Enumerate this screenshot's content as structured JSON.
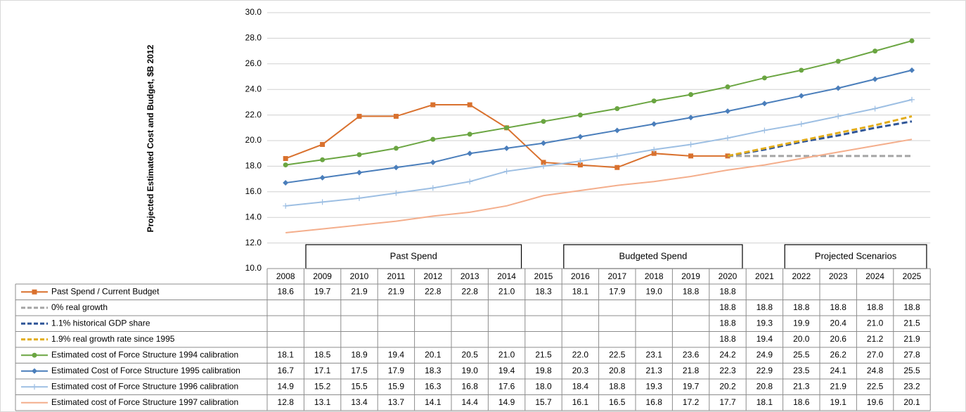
{
  "chart_data": {
    "type": "line",
    "y_axis_label": "Projected Estimated Cost and  Budget, $B 2012",
    "categories": [
      "2008",
      "2009",
      "2010",
      "2011",
      "2012",
      "2013",
      "2014",
      "2015",
      "2016",
      "2017",
      "2018",
      "2019",
      "2020",
      "2021",
      "2022",
      "2023",
      "2024",
      "2025"
    ],
    "ylim": [
      10,
      30
    ],
    "yticks": [
      {
        "value": 10,
        "label": "10.0"
      },
      {
        "value": 12,
        "label": "12.0"
      },
      {
        "value": 14,
        "label": "14.0"
      },
      {
        "value": 16,
        "label": "16.0"
      },
      {
        "value": 18,
        "label": "18.0"
      },
      {
        "value": 20,
        "label": "20.0"
      },
      {
        "value": 22,
        "label": "22.0"
      },
      {
        "value": 24,
        "label": "24.0"
      },
      {
        "value": 26,
        "label": "26.0"
      },
      {
        "value": 28,
        "label": "28.0"
      },
      {
        "value": 30,
        "label": "30.0"
      }
    ],
    "grid": true,
    "annotations": [
      {
        "text": "Past Spend",
        "from": "2009",
        "to": "2014"
      },
      {
        "text": "Budgeted Spend",
        "from": "2016",
        "to": "2020"
      },
      {
        "text": "Projected Scenarios",
        "from": "2022",
        "to": "2025"
      }
    ],
    "series": [
      {
        "name": "Past Spend / Current Budget",
        "color": "#d9712e",
        "marker": "square",
        "dashed": false,
        "values": [
          18.6,
          19.7,
          21.9,
          21.9,
          22.8,
          22.8,
          21.0,
          18.3,
          18.1,
          17.9,
          19.0,
          18.8,
          18.8,
          null,
          null,
          null,
          null,
          null
        ],
        "value_labels": [
          "18.6",
          "19.7",
          "21.9",
          "21.9",
          "22.8",
          "22.8",
          "21.0",
          "18.3",
          "18.1",
          "17.9",
          "19.0",
          "18.8",
          "18.8",
          null,
          null,
          null,
          null,
          null
        ]
      },
      {
        "name": "0% real growth",
        "color": "#a5a5a5",
        "marker": "none",
        "dashed": true,
        "values": [
          null,
          null,
          null,
          null,
          null,
          null,
          null,
          null,
          null,
          null,
          null,
          null,
          18.8,
          18.8,
          18.8,
          18.8,
          18.8,
          18.8
        ],
        "value_labels": [
          null,
          null,
          null,
          null,
          null,
          null,
          null,
          null,
          null,
          null,
          null,
          null,
          "18.8",
          "18.8",
          "18.8",
          "18.8",
          "18.8",
          "18.8"
        ]
      },
      {
        "name": "1.1% historical GDP share",
        "color": "#2f5597",
        "marker": "none",
        "dashed": true,
        "values": [
          null,
          null,
          null,
          null,
          null,
          null,
          null,
          null,
          null,
          null,
          null,
          null,
          18.8,
          19.3,
          19.9,
          20.4,
          21.0,
          21.5
        ],
        "value_labels": [
          null,
          null,
          null,
          null,
          null,
          null,
          null,
          null,
          null,
          null,
          null,
          null,
          "18.8",
          "19.3",
          "19.9",
          "20.4",
          "21.0",
          "21.5"
        ]
      },
      {
        "name": "1.9% real growth rate since 1995",
        "color": "#e2ac1a",
        "marker": "none",
        "dashed": true,
        "values": [
          null,
          null,
          null,
          null,
          null,
          null,
          null,
          null,
          null,
          null,
          null,
          null,
          18.8,
          19.4,
          20.0,
          20.6,
          21.2,
          21.9
        ],
        "value_labels": [
          null,
          null,
          null,
          null,
          null,
          null,
          null,
          null,
          null,
          null,
          null,
          null,
          "18.8",
          "19.4",
          "20.0",
          "20.6",
          "21.2",
          "21.9"
        ]
      },
      {
        "name": "Estimated cost of Force Structure 1994 calibration",
        "color": "#6aa541",
        "marker": "circle",
        "dashed": false,
        "values": [
          18.1,
          18.5,
          18.9,
          19.4,
          20.1,
          20.5,
          21.0,
          21.5,
          22.0,
          22.5,
          23.1,
          23.6,
          24.2,
          24.9,
          25.5,
          26.2,
          27.0,
          27.8
        ],
        "value_labels": [
          "18.1",
          "18.5",
          "18.9",
          "19.4",
          "20.1",
          "20.5",
          "21.0",
          "21.5",
          "22.0",
          "22.5",
          "23.1",
          "23.6",
          "24.2",
          "24.9",
          "25.5",
          "26.2",
          "27.0",
          "27.8"
        ]
      },
      {
        "name": "Estimated Cost of Force Structure 1995 calibration",
        "color": "#4a7ebb",
        "marker": "diamond",
        "dashed": false,
        "values": [
          16.7,
          17.1,
          17.5,
          17.9,
          18.3,
          19.0,
          19.4,
          19.8,
          20.3,
          20.8,
          21.3,
          21.8,
          22.3,
          22.9,
          23.5,
          24.1,
          24.8,
          25.5
        ],
        "value_labels": [
          "16.7",
          "17.1",
          "17.5",
          "17.9",
          "18.3",
          "19.0",
          "19.4",
          "19.8",
          "20.3",
          "20.8",
          "21.3",
          "21.8",
          "22.3",
          "22.9",
          "23.5",
          "24.1",
          "24.8",
          "25.5"
        ]
      },
      {
        "name": "Estimated cost of Force Structure 1996 calibration",
        "color": "#9dbfe3",
        "marker": "plus",
        "dashed": false,
        "values": [
          14.9,
          15.2,
          15.5,
          15.9,
          16.3,
          16.8,
          17.6,
          18.0,
          18.4,
          18.8,
          19.3,
          19.7,
          20.2,
          20.8,
          21.3,
          21.9,
          22.5,
          23.2
        ],
        "value_labels": [
          "14.9",
          "15.2",
          "15.5",
          "15.9",
          "16.3",
          "16.8",
          "17.6",
          "18.0",
          "18.4",
          "18.8",
          "19.3",
          "19.7",
          "20.2",
          "20.8",
          "21.3",
          "21.9",
          "22.5",
          "23.2"
        ]
      },
      {
        "name": "Estimated cost of Force Structure 1997 calibration",
        "color": "#f4ae8c",
        "marker": "none",
        "dashed": false,
        "values": [
          12.8,
          13.1,
          13.4,
          13.7,
          14.1,
          14.4,
          14.9,
          15.7,
          16.1,
          16.5,
          16.8,
          17.2,
          17.7,
          18.1,
          18.6,
          19.1,
          19.6,
          20.1
        ],
        "value_labels": [
          "12.8",
          "13.1",
          "13.4",
          "13.7",
          "14.1",
          "14.4",
          "14.9",
          "15.7",
          "16.1",
          "16.5",
          "16.8",
          "17.2",
          "17.7",
          "18.1",
          "18.6",
          "19.1",
          "19.6",
          "20.1"
        ]
      }
    ]
  }
}
